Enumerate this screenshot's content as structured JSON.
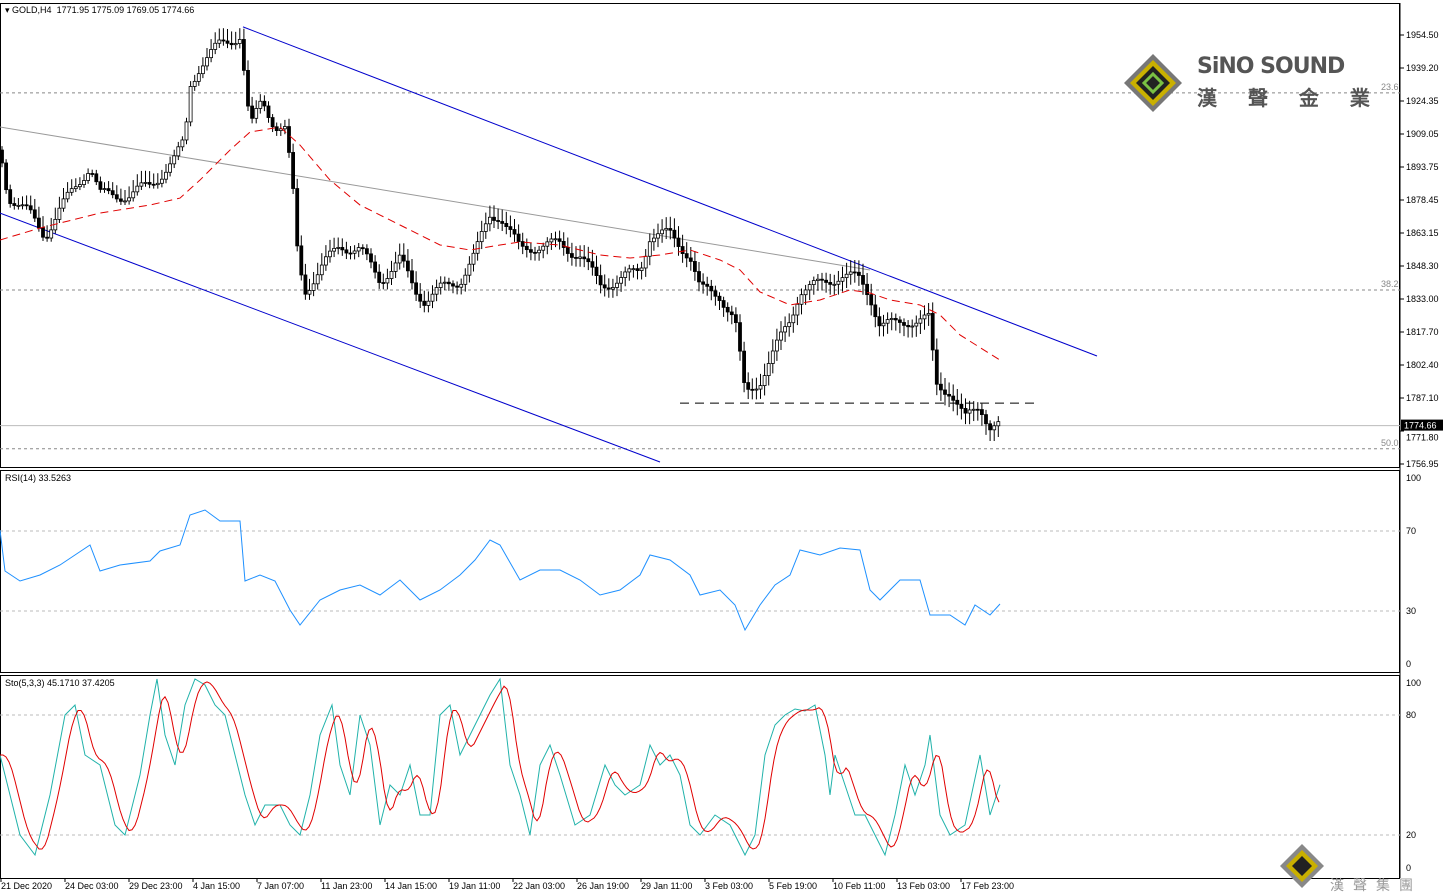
{
  "header": {
    "symbol": "GOLD,H4",
    "ohlc": "1771.95 1775.09 1769.05 1774.66"
  },
  "logo": {
    "name": "SiNO SOUND",
    "chinese": "漢 聲 金 業",
    "footer_chinese": "漢聲集團"
  },
  "colors": {
    "channel": "#0000cc",
    "trend": "#999999",
    "ma": "#e00000",
    "rsi": "#1e90ff",
    "sto_main": "#20b2aa",
    "sto_signal": "#e00000"
  },
  "chart_data": [
    {
      "type": "candlestick",
      "title": "GOLD,H4",
      "x_range": [
        0,
        1400
      ],
      "ylim": [
        1755.6,
        1969.2
      ],
      "y_ticks": [
        "1954.50",
        "1939.20",
        "1924.35",
        "1909.05",
        "1893.75",
        "1878.45",
        "1863.15",
        "1848.30",
        "1833.00",
        "1817.70",
        "1802.40",
        "1787.10",
        "1771.80",
        "1756.95"
      ],
      "current_price": "1774.66",
      "x_ticks": [
        "21 Dec 2020",
        "24 Dec 03:00",
        "29 Dec 23:00",
        "4 Jan 15:00",
        "7 Jan 07:00",
        "11 Jan 23:00",
        "14 Jan 15:00",
        "19 Jan 11:00",
        "22 Jan 03:00",
        "26 Jan 19:00",
        "29 Jan 11:00",
        "3 Feb 03:00",
        "5 Feb 19:00",
        "10 Feb 11:00",
        "13 Feb 03:00",
        "17 Feb 23:00"
      ],
      "close": [
        [
          0,
          1901.5
        ],
        [
          8,
          1880.8
        ],
        [
          30,
          1871.6
        ],
        [
          45,
          1862.4
        ],
        [
          60,
          1873.9
        ],
        [
          90,
          1894.6
        ],
        [
          100,
          1880.8
        ],
        [
          130,
          1880.8
        ],
        [
          150,
          1885.4
        ],
        [
          175,
          1897
        ],
        [
          185,
          1906.1
        ],
        [
          190,
          1931.5
        ],
        [
          200,
          1940.7
        ],
        [
          220,
          1949.9
        ],
        [
          240,
          1954.5
        ],
        [
          245,
          1933.8
        ],
        [
          250,
          1910.8
        ],
        [
          262,
          1924.6
        ],
        [
          275,
          1913.1
        ],
        [
          285,
          1910.8
        ],
        [
          292,
          1887.7
        ],
        [
          298,
          1850.9
        ],
        [
          305,
          1837.1
        ],
        [
          320,
          1846.3
        ],
        [
          340,
          1857.8
        ],
        [
          360,
          1855.5
        ],
        [
          380,
          1841.7
        ],
        [
          400,
          1850.9
        ],
        [
          415,
          1837.1
        ],
        [
          425,
          1832.5
        ],
        [
          440,
          1837.1
        ],
        [
          460,
          1841.7
        ],
        [
          475,
          1853.2
        ],
        [
          490,
          1871.6
        ],
        [
          500,
          1871.6
        ],
        [
          520,
          1855.5
        ],
        [
          540,
          1857.8
        ],
        [
          560,
          1857.8
        ],
        [
          580,
          1853.2
        ],
        [
          600,
          1839.4
        ],
        [
          620,
          1841.7
        ],
        [
          640,
          1846.3
        ],
        [
          650,
          1862.4
        ],
        [
          670,
          1862.4
        ],
        [
          690,
          1853.2
        ],
        [
          700,
          1837.1
        ],
        [
          720,
          1834.8
        ],
        [
          735,
          1823.3
        ],
        [
          745,
          1788.7
        ],
        [
          760,
          1795.6
        ],
        [
          775,
          1809.4
        ],
        [
          790,
          1823.3
        ],
        [
          800,
          1837.1
        ],
        [
          820,
          1839.4
        ],
        [
          840,
          1844
        ],
        [
          860,
          1841.7
        ],
        [
          870,
          1834.8
        ],
        [
          880,
          1821
        ],
        [
          895,
          1821
        ],
        [
          910,
          1823.3
        ],
        [
          930,
          1823.3
        ],
        [
          935,
          1793.3
        ],
        [
          950,
          1791
        ],
        [
          965,
          1777.2
        ],
        [
          980,
          1784.1
        ],
        [
          990,
          1774.7
        ],
        [
          1000,
          1774.66
        ]
      ],
      "moving_average": [
        [
          0,
          1860.1
        ],
        [
          40,
          1865.6
        ],
        [
          100,
          1872.5
        ],
        [
          150,
          1876.2
        ],
        [
          180,
          1879.4
        ],
        [
          200,
          1887.7
        ],
        [
          230,
          1901.5
        ],
        [
          250,
          1909.8
        ],
        [
          280,
          1912.1
        ],
        [
          300,
          1903.8
        ],
        [
          330,
          1887.7
        ],
        [
          360,
          1876.2
        ],
        [
          400,
          1867
        ],
        [
          440,
          1857.8
        ],
        [
          470,
          1855.5
        ],
        [
          500,
          1857.8
        ],
        [
          520,
          1859.2
        ],
        [
          560,
          1857.8
        ],
        [
          600,
          1853.2
        ],
        [
          630,
          1851.8
        ],
        [
          660,
          1853.2
        ],
        [
          690,
          1855.5
        ],
        [
          720,
          1850.9
        ],
        [
          740,
          1846.3
        ],
        [
          760,
          1836.2
        ],
        [
          790,
          1830.2
        ],
        [
          820,
          1832.5
        ],
        [
          850,
          1837.1
        ],
        [
          870,
          1835.7
        ],
        [
          890,
          1832.5
        ],
        [
          920,
          1830.2
        ],
        [
          940,
          1825.6
        ],
        [
          960,
          1816.4
        ],
        [
          1000,
          1804.8
        ]
      ],
      "channel_upper": [
        [
          243,
          1958.2
        ],
        [
          1097,
          1806.7
        ]
      ],
      "channel_lower": [
        [
          0,
          1872.5
        ],
        [
          660,
          1757.9
        ]
      ],
      "trendline": [
        [
          0,
          1912.1
        ],
        [
          870,
          1846.3
        ]
      ],
      "support": {
        "from": 680,
        "to": 1035,
        "price": 1785.0
      },
      "fibonacci": [
        {
          "label": "23.6",
          "price": 1927.8
        },
        {
          "label": "38.2",
          "price": 1837.1
        },
        {
          "label": "50.0",
          "price": 1764.0
        }
      ]
    },
    {
      "type": "line",
      "title": "RSI(14) 33.5263",
      "ylim": [
        0,
        100
      ],
      "levels": [
        30,
        70
      ],
      "y_ticks": [
        "100",
        "70",
        "30",
        "0"
      ],
      "values": [
        [
          0,
          70.5
        ],
        [
          5,
          50
        ],
        [
          20,
          45
        ],
        [
          40,
          48
        ],
        [
          60,
          53
        ],
        [
          90,
          63
        ],
        [
          100,
          50
        ],
        [
          120,
          53
        ],
        [
          150,
          55
        ],
        [
          160,
          60
        ],
        [
          180,
          63
        ],
        [
          190,
          78
        ],
        [
          205,
          80.5
        ],
        [
          220,
          75
        ],
        [
          240,
          75
        ],
        [
          245,
          45
        ],
        [
          260,
          48
        ],
        [
          275,
          45
        ],
        [
          290,
          30.5
        ],
        [
          300,
          23
        ],
        [
          320,
          35.5
        ],
        [
          340,
          40.5
        ],
        [
          360,
          43
        ],
        [
          380,
          38
        ],
        [
          400,
          45.5
        ],
        [
          420,
          35.5
        ],
        [
          440,
          40.5
        ],
        [
          460,
          48
        ],
        [
          475,
          55.5
        ],
        [
          490,
          65.5
        ],
        [
          500,
          63
        ],
        [
          520,
          45.5
        ],
        [
          540,
          50.5
        ],
        [
          560,
          50.5
        ],
        [
          580,
          45.5
        ],
        [
          600,
          38
        ],
        [
          620,
          40.5
        ],
        [
          640,
          48
        ],
        [
          650,
          58
        ],
        [
          670,
          55.5
        ],
        [
          690,
          48
        ],
        [
          700,
          38
        ],
        [
          720,
          40.5
        ],
        [
          735,
          33
        ],
        [
          745,
          20.5
        ],
        [
          760,
          33
        ],
        [
          775,
          43
        ],
        [
          790,
          48
        ],
        [
          800,
          60.5
        ],
        [
          820,
          58
        ],
        [
          840,
          61.5
        ],
        [
          860,
          60.5
        ],
        [
          870,
          40.5
        ],
        [
          880,
          35.5
        ],
        [
          900,
          45.5
        ],
        [
          920,
          45.5
        ],
        [
          930,
          28
        ],
        [
          950,
          28
        ],
        [
          965,
          23
        ],
        [
          975,
          33
        ],
        [
          990,
          28
        ],
        [
          1000,
          33.5
        ]
      ]
    },
    {
      "type": "line",
      "title": "Sto(5,3,3) 45.1710 37.4205",
      "ylim": [
        0,
        100
      ],
      "levels": [
        20,
        80
      ],
      "y_ticks": [
        "100",
        "80",
        "20",
        "0"
      ],
      "main": [
        [
          0,
          60
        ],
        [
          10,
          40
        ],
        [
          20,
          20
        ],
        [
          35,
          10
        ],
        [
          50,
          40
        ],
        [
          65,
          80
        ],
        [
          75,
          85
        ],
        [
          85,
          60
        ],
        [
          100,
          55
        ],
        [
          115,
          25
        ],
        [
          125,
          20
        ],
        [
          140,
          50
        ],
        [
          150,
          80
        ],
        [
          157,
          98
        ],
        [
          165,
          70
        ],
        [
          175,
          55
        ],
        [
          185,
          85
        ],
        [
          195,
          98
        ],
        [
          205,
          95
        ],
        [
          215,
          85
        ],
        [
          225,
          80
        ],
        [
          235,
          60
        ],
        [
          245,
          40
        ],
        [
          255,
          25
        ],
        [
          265,
          35
        ],
        [
          280,
          35
        ],
        [
          290,
          25
        ],
        [
          300,
          20
        ],
        [
          310,
          40
        ],
        [
          320,
          70
        ],
        [
          332,
          85
        ],
        [
          340,
          55
        ],
        [
          350,
          40
        ],
        [
          360,
          80
        ],
        [
          370,
          65
        ],
        [
          380,
          25
        ],
        [
          390,
          45
        ],
        [
          400,
          40
        ],
        [
          410,
          55
        ],
        [
          420,
          30
        ],
        [
          430,
          30
        ],
        [
          440,
          80
        ],
        [
          450,
          85
        ],
        [
          460,
          60
        ],
        [
          470,
          70
        ],
        [
          480,
          80
        ],
        [
          490,
          90
        ],
        [
          500,
          98
        ],
        [
          510,
          55
        ],
        [
          520,
          40
        ],
        [
          530,
          20
        ],
        [
          540,
          55
        ],
        [
          550,
          65
        ],
        [
          560,
          50
        ],
        [
          575,
          25
        ],
        [
          590,
          30
        ],
        [
          605,
          55
        ],
        [
          615,
          45
        ],
        [
          625,
          40
        ],
        [
          640,
          45
        ],
        [
          650,
          65
        ],
        [
          660,
          55
        ],
        [
          670,
          60
        ],
        [
          680,
          50
        ],
        [
          690,
          25
        ],
        [
          700,
          20
        ],
        [
          715,
          30
        ],
        [
          730,
          25
        ],
        [
          745,
          10
        ],
        [
          755,
          20
        ],
        [
          765,
          60
        ],
        [
          775,
          75
        ],
        [
          785,
          80
        ],
        [
          795,
          83
        ],
        [
          805,
          82
        ],
        [
          815,
          85
        ],
        [
          825,
          60
        ],
        [
          830,
          40
        ],
        [
          835,
          60
        ],
        [
          845,
          45
        ],
        [
          855,
          30
        ],
        [
          865,
          30
        ],
        [
          875,
          20
        ],
        [
          885,
          10
        ],
        [
          895,
          30
        ],
        [
          905,
          55
        ],
        [
          915,
          40
        ],
        [
          925,
          55
        ],
        [
          930,
          70
        ],
        [
          940,
          30
        ],
        [
          950,
          20
        ],
        [
          965,
          25
        ],
        [
          980,
          60
        ],
        [
          990,
          30
        ],
        [
          1000,
          45.17
        ]
      ],
      "signal_last": 37.42
    }
  ]
}
